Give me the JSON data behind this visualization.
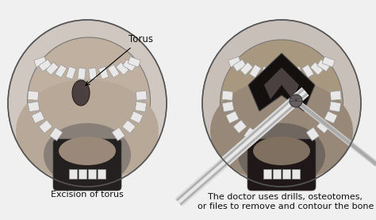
{
  "bg_color": "#f0f0f0",
  "left_label": "Excision of torus",
  "right_label": "The doctor uses drills, osteotomes,\nor files to remove and contour the bone",
  "torus_label": "Torus",
  "outer_mouth_color": "#c8c0b8",
  "palate_color": "#b8a898",
  "inner_palate_color": "#a89888",
  "throat_color": "#2a2020",
  "teeth_color": "#e8e8e8",
  "teeth_edge": "#999999",
  "torus_color": "#5a5050",
  "dark_flap": "#1a1010",
  "dark_flap_inner": "#383030",
  "tool_color": "#cccccc",
  "tool_edge": "#aaaaaa",
  "text_color": "#111111",
  "font_size_label": 8,
  "font_size_torus": 8.5
}
